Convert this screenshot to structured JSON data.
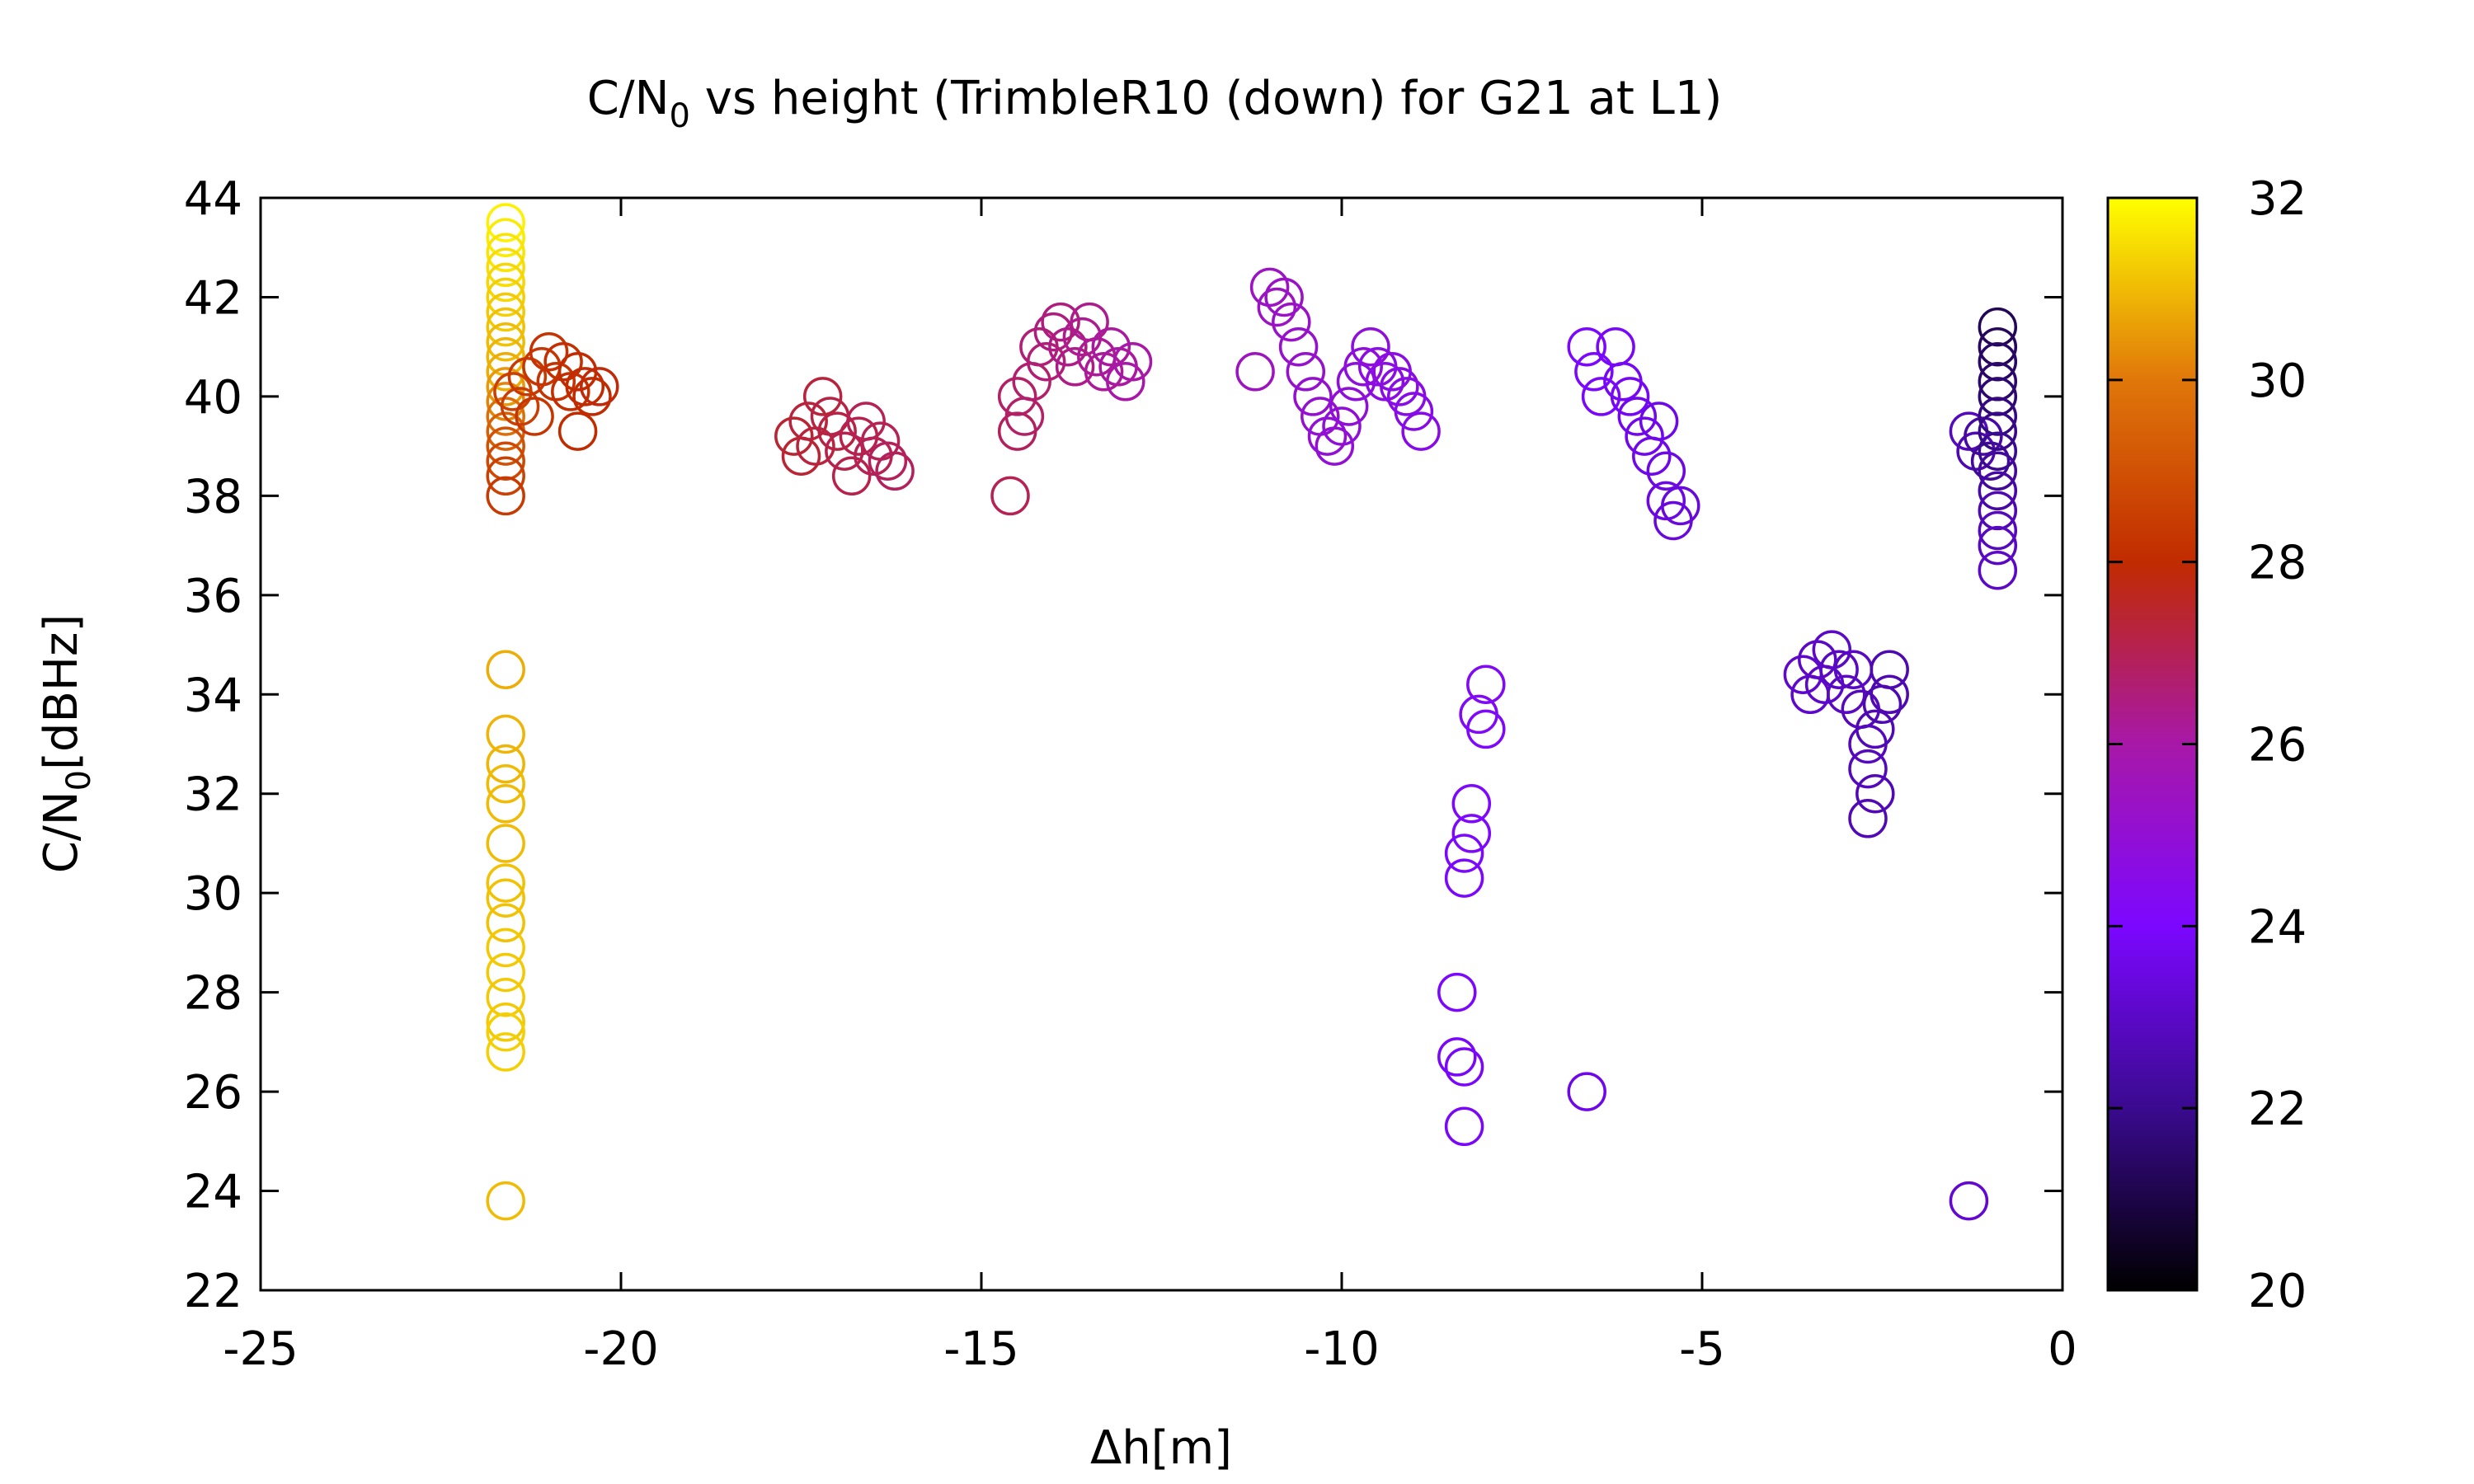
{
  "chart_data": {
    "type": "scatter",
    "title_main": "C/N",
    "title_sub": "0",
    "title_rest": " vs height (TrimbleR10 (down) for G21 at L1)",
    "xlabel": "Δh[m]",
    "ylabel_main": "C/N",
    "ylabel_sub": "0",
    "ylabel_rest": "[dBHz]",
    "xlim": [
      -25,
      0
    ],
    "ylim": [
      22,
      44
    ],
    "x_ticks": [
      -25,
      -20,
      -15,
      -10,
      -5,
      0
    ],
    "x_tick_labels": [
      "-25",
      "-20",
      "-15",
      "-10",
      "-5",
      "0"
    ],
    "y_ticks": [
      22,
      24,
      26,
      28,
      30,
      32,
      34,
      36,
      38,
      40,
      42,
      44
    ],
    "y_tick_labels": [
      "22",
      "24",
      "26",
      "28",
      "30",
      "32",
      "34",
      "36",
      "38",
      "40",
      "42",
      "44"
    ],
    "colorbar": {
      "range": [
        20,
        32
      ],
      "ticks": [
        20,
        22,
        24,
        26,
        28,
        30,
        32
      ],
      "tick_labels": [
        "20",
        "22",
        "24",
        "26",
        "28",
        "30",
        "32"
      ],
      "colormap": [
        "#000000",
        "#3a0a8f",
        "#7c07ff",
        "#a818a8",
        "#c12b00",
        "#e0770a",
        "#ffff00"
      ]
    },
    "marker": "open-circle",
    "points": [
      [
        -21.6,
        43.5,
        31.8
      ],
      [
        -21.6,
        43.2,
        31.7
      ],
      [
        -21.6,
        42.9,
        31.6
      ],
      [
        -21.6,
        42.6,
        31.5
      ],
      [
        -21.6,
        42.3,
        31.4
      ],
      [
        -21.6,
        42.0,
        31.3
      ],
      [
        -21.6,
        41.7,
        31.2
      ],
      [
        -21.6,
        41.4,
        31.1
      ],
      [
        -21.6,
        41.1,
        31.0
      ],
      [
        -21.6,
        40.8,
        30.9
      ],
      [
        -21.6,
        40.5,
        30.8
      ],
      [
        -21.6,
        40.2,
        30.5
      ],
      [
        -21.6,
        39.9,
        30.2
      ],
      [
        -21.6,
        39.6,
        29.8
      ],
      [
        -21.6,
        39.3,
        29.4
      ],
      [
        -21.6,
        39.0,
        29.0
      ],
      [
        -21.6,
        38.7,
        28.8
      ],
      [
        -21.6,
        38.4,
        28.6
      ],
      [
        -21.6,
        38.0,
        28.4
      ],
      [
        -21.5,
        40.1,
        28.6
      ],
      [
        -21.4,
        39.8,
        28.5
      ],
      [
        -21.3,
        40.4,
        28.4
      ],
      [
        -21.2,
        39.6,
        28.3
      ],
      [
        -21.1,
        40.6,
        28.3
      ],
      [
        -21.0,
        40.9,
        28.2
      ],
      [
        -20.9,
        40.3,
        28.2
      ],
      [
        -20.8,
        40.7,
        28.1
      ],
      [
        -20.7,
        40.1,
        28.1
      ],
      [
        -20.6,
        40.5,
        28.0
      ],
      [
        -20.6,
        39.3,
        28.0
      ],
      [
        -20.5,
        40.2,
        28.0
      ],
      [
        -20.4,
        40.0,
        28.0
      ],
      [
        -20.3,
        40.2,
        27.9
      ],
      [
        -21.6,
        34.5,
        30.8
      ],
      [
        -21.6,
        33.2,
        30.9
      ],
      [
        -21.6,
        32.6,
        30.9
      ],
      [
        -21.6,
        32.2,
        31.0
      ],
      [
        -21.6,
        31.8,
        31.0
      ],
      [
        -21.6,
        31.0,
        31.0
      ],
      [
        -21.6,
        30.2,
        31.1
      ],
      [
        -21.6,
        29.9,
        31.1
      ],
      [
        -21.6,
        29.4,
        31.1
      ],
      [
        -21.6,
        28.9,
        31.2
      ],
      [
        -21.6,
        28.4,
        31.2
      ],
      [
        -21.6,
        27.9,
        31.2
      ],
      [
        -21.6,
        27.4,
        31.2
      ],
      [
        -21.6,
        27.2,
        31.3
      ],
      [
        -21.6,
        26.8,
        31.3
      ],
      [
        -21.6,
        23.8,
        31.0
      ],
      [
        -17.6,
        39.2,
        27.4
      ],
      [
        -17.5,
        38.8,
        27.4
      ],
      [
        -17.4,
        39.5,
        27.3
      ],
      [
        -17.3,
        39.0,
        27.3
      ],
      [
        -17.2,
        40.0,
        27.3
      ],
      [
        -17.1,
        39.6,
        27.2
      ],
      [
        -17.0,
        39.3,
        27.2
      ],
      [
        -16.9,
        38.9,
        27.1
      ],
      [
        -16.8,
        38.4,
        27.1
      ],
      [
        -16.7,
        39.2,
        27.1
      ],
      [
        -16.6,
        39.5,
        27.0
      ],
      [
        -16.5,
        38.8,
        27.0
      ],
      [
        -16.4,
        39.1,
        27.0
      ],
      [
        -16.3,
        38.7,
        26.9
      ],
      [
        -16.2,
        38.5,
        26.9
      ],
      [
        -14.6,
        38.0,
        27.0
      ],
      [
        -14.5,
        39.3,
        26.9
      ],
      [
        -14.5,
        40.0,
        26.8
      ],
      [
        -14.4,
        39.6,
        26.8
      ],
      [
        -14.3,
        40.3,
        26.7
      ],
      [
        -14.2,
        41.0,
        26.6
      ],
      [
        -14.1,
        40.7,
        26.6
      ],
      [
        -14.0,
        41.3,
        26.5
      ],
      [
        -13.9,
        41.5,
        26.5
      ],
      [
        -13.8,
        41.0,
        26.4
      ],
      [
        -13.7,
        40.6,
        26.4
      ],
      [
        -13.6,
        41.2,
        26.3
      ],
      [
        -13.5,
        41.5,
        26.3
      ],
      [
        -13.4,
        40.8,
        26.2
      ],
      [
        -13.3,
        40.5,
        26.2
      ],
      [
        -13.2,
        41.0,
        26.1
      ],
      [
        -13.1,
        40.6,
        26.1
      ],
      [
        -13.0,
        40.3,
        26.0
      ],
      [
        -12.9,
        40.7,
        26.0
      ],
      [
        -11.2,
        40.5,
        25.5
      ],
      [
        -11.0,
        42.2,
        25.4
      ],
      [
        -10.9,
        41.8,
        25.4
      ],
      [
        -10.8,
        42.0,
        25.3
      ],
      [
        -10.7,
        41.5,
        25.3
      ],
      [
        -10.6,
        41.0,
        25.2
      ],
      [
        -10.5,
        40.5,
        25.2
      ],
      [
        -10.4,
        40.0,
        25.1
      ],
      [
        -10.3,
        39.6,
        25.1
      ],
      [
        -10.2,
        39.2,
        25.0
      ],
      [
        -10.1,
        39.0,
        25.0
      ],
      [
        -10.0,
        39.4,
        24.9
      ],
      [
        -9.9,
        39.8,
        24.9
      ],
      [
        -9.8,
        40.3,
        24.8
      ],
      [
        -9.7,
        40.6,
        24.8
      ],
      [
        -9.6,
        41.0,
        24.8
      ],
      [
        -9.5,
        40.6,
        24.7
      ],
      [
        -9.4,
        40.3,
        24.7
      ],
      [
        -9.3,
        40.5,
        24.7
      ],
      [
        -9.2,
        40.2,
        24.6
      ],
      [
        -9.1,
        40.0,
        24.6
      ],
      [
        -9.0,
        39.7,
        24.5
      ],
      [
        -8.9,
        39.3,
        24.5
      ],
      [
        -8.0,
        34.2,
        24.2
      ],
      [
        -8.1,
        33.6,
        24.2
      ],
      [
        -8.0,
        33.3,
        24.1
      ],
      [
        -8.2,
        31.8,
        24.1
      ],
      [
        -8.2,
        31.2,
        24.1
      ],
      [
        -8.3,
        30.8,
        24.0
      ],
      [
        -8.3,
        30.3,
        24.0
      ],
      [
        -8.4,
        28.0,
        24.0
      ],
      [
        -8.4,
        26.7,
        23.9
      ],
      [
        -8.3,
        26.5,
        23.9
      ],
      [
        -8.3,
        25.3,
        23.9
      ],
      [
        -6.6,
        26.0,
        23.6
      ],
      [
        -6.6,
        41.0,
        24.0
      ],
      [
        -6.5,
        40.5,
        24.0
      ],
      [
        -6.4,
        40.0,
        23.9
      ],
      [
        -6.2,
        41.0,
        23.9
      ],
      [
        -6.1,
        40.3,
        23.8
      ],
      [
        -6.0,
        40.0,
        23.8
      ],
      [
        -5.9,
        39.6,
        23.7
      ],
      [
        -5.8,
        39.2,
        23.7
      ],
      [
        -5.7,
        38.8,
        23.6
      ],
      [
        -5.6,
        39.5,
        23.6
      ],
      [
        -5.5,
        38.5,
        23.5
      ],
      [
        -5.5,
        37.9,
        23.5
      ],
      [
        -5.4,
        37.5,
        23.4
      ],
      [
        -5.3,
        37.8,
        23.4
      ],
      [
        -3.6,
        34.4,
        23.1
      ],
      [
        -3.5,
        34.0,
        23.1
      ],
      [
        -3.4,
        34.7,
        23.0
      ],
      [
        -3.3,
        34.2,
        23.0
      ],
      [
        -3.2,
        34.9,
        23.0
      ],
      [
        -3.1,
        34.5,
        22.9
      ],
      [
        -3.0,
        34.0,
        22.9
      ],
      [
        -2.9,
        34.5,
        22.9
      ],
      [
        -2.8,
        33.7,
        22.8
      ],
      [
        -2.7,
        33.0,
        22.8
      ],
      [
        -2.7,
        32.5,
        22.8
      ],
      [
        -2.7,
        31.5,
        22.7
      ],
      [
        -2.6,
        32.0,
        22.7
      ],
      [
        -2.6,
        33.3,
        22.7
      ],
      [
        -2.5,
        33.8,
        22.6
      ],
      [
        -2.4,
        34.5,
        22.6
      ],
      [
        -2.4,
        34.0,
        22.6
      ],
      [
        -1.3,
        39.3,
        22.8
      ],
      [
        -1.2,
        38.9,
        22.6
      ],
      [
        -1.1,
        39.2,
        22.4
      ],
      [
        -1.0,
        38.7,
        22.2
      ],
      [
        -0.9,
        41.4,
        21.2
      ],
      [
        -0.9,
        41.0,
        21.3
      ],
      [
        -0.9,
        40.7,
        21.4
      ],
      [
        -0.9,
        40.3,
        21.5
      ],
      [
        -0.9,
        40.0,
        21.6
      ],
      [
        -0.9,
        39.6,
        21.8
      ],
      [
        -0.9,
        39.3,
        21.9
      ],
      [
        -0.9,
        38.9,
        22.0
      ],
      [
        -0.9,
        38.5,
        22.2
      ],
      [
        -0.9,
        38.1,
        22.4
      ],
      [
        -0.9,
        37.7,
        22.6
      ],
      [
        -0.9,
        37.3,
        22.8
      ],
      [
        -0.9,
        37.0,
        22.9
      ],
      [
        -0.9,
        36.5,
        23.0
      ],
      [
        -1.3,
        23.8,
        23.2
      ]
    ]
  }
}
